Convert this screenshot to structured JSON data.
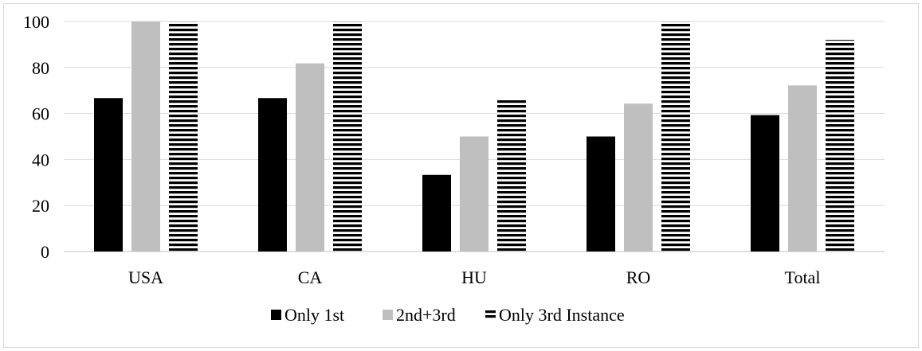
{
  "chart_data": {
    "type": "bar",
    "title": "",
    "xlabel": "",
    "ylabel": "",
    "categories": [
      "USA",
      "CA",
      "HU",
      "RO",
      "Total"
    ],
    "ylim": [
      0,
      100
    ],
    "yticks": [
      0,
      20,
      40,
      60,
      80,
      100
    ],
    "grid": "horizontal",
    "legend_position": "bottom",
    "series": [
      {
        "name": "Only 1st",
        "values": [
          66.7,
          66.7,
          33.3,
          50.0,
          59.3
        ],
        "color": "#000000",
        "pattern": "solid"
      },
      {
        "name": "2nd+3rd",
        "values": [
          100,
          81.8,
          50.0,
          64.3,
          72.2
        ],
        "color": "#bfbfbf",
        "pattern": "solid"
      },
      {
        "name": "Only 3rd Instance",
        "values": [
          100,
          100,
          66.0,
          100,
          92.0
        ],
        "color": "#000000",
        "pattern": "horizontal-stripes"
      }
    ]
  }
}
